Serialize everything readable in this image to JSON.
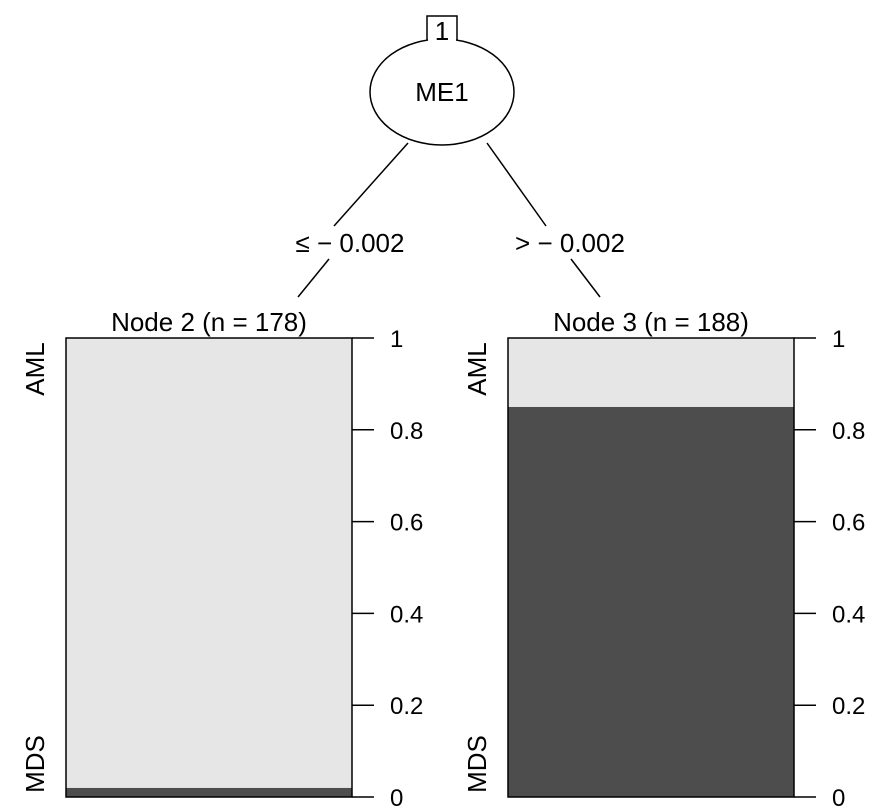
{
  "chart_data": {
    "type": "bar",
    "root": {
      "id": "1",
      "variable": "ME1",
      "split_left": "≤ − 0.002",
      "split_right": "> − 0.002"
    },
    "nodes": [
      {
        "title": "Node 2 (n = 178)",
        "categories": [
          "MDS",
          "AML"
        ],
        "values": [
          0.02,
          0.98
        ]
      },
      {
        "title": "Node 3 (n = 188)",
        "categories": [
          "MDS",
          "AML"
        ],
        "values": [
          0.85,
          0.15
        ]
      }
    ],
    "ylim": [
      0,
      1
    ],
    "yticks": [
      "0",
      "0.2",
      "0.4",
      "0.6",
      "0.8",
      "1"
    ],
    "colors": {
      "MDS": "#4d4d4d",
      "AML": "#e6e6e6"
    },
    "category_labels": {
      "top": "AML",
      "bottom": "MDS"
    }
  }
}
